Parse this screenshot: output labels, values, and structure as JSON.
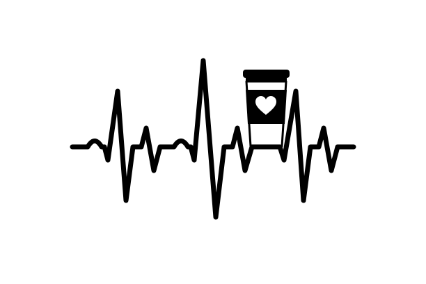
{
  "illustration": {
    "line_color": "#000000",
    "background_color": "#ffffff",
    "cup_band_color": "#000000",
    "heart_color": "#ffffff",
    "icons": [
      "heartbeat-line-icon",
      "coffee-cup-icon",
      "heart-icon"
    ]
  }
}
